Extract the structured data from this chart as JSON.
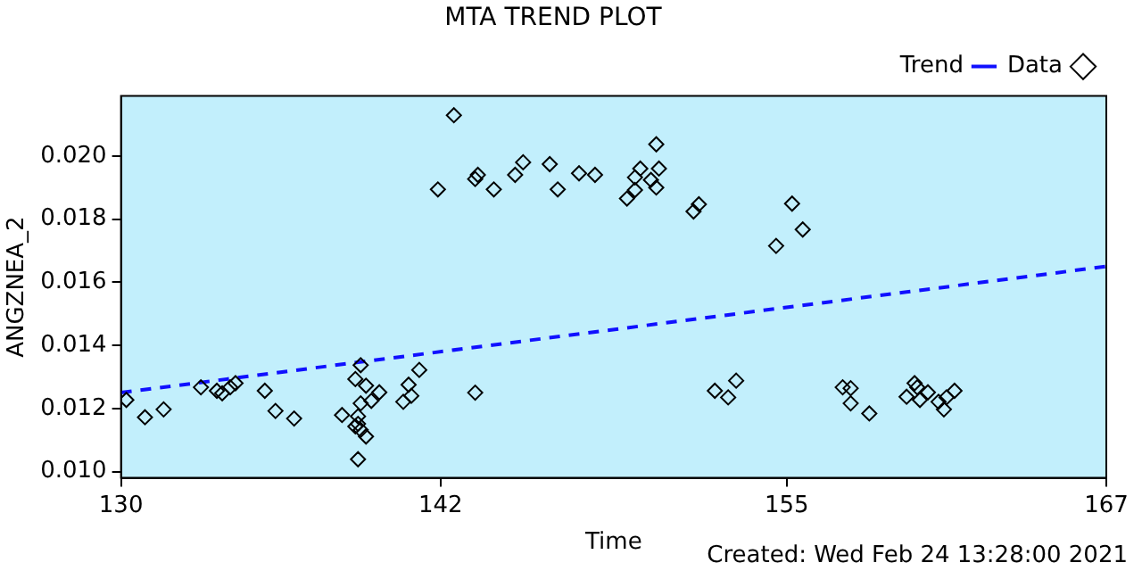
{
  "chart_data": {
    "type": "scatter",
    "title": "MTA TREND PLOT",
    "xlabel": "Time",
    "ylabel": "ANGZNEA_2",
    "annotations": [
      "Created: Wed Feb 24 13:28:00 2021"
    ],
    "xlim": [
      130,
      167
    ],
    "xticks": [
      130,
      142,
      155,
      167
    ],
    "ylim": [
      0.0098,
      0.0219
    ],
    "yticks": [
      {
        "value": 0.01,
        "label": "0.010"
      },
      {
        "value": 0.012,
        "label": "0.012"
      },
      {
        "value": 0.014,
        "label": "0.014"
      },
      {
        "value": 0.016,
        "label": "0.016"
      },
      {
        "value": 0.018,
        "label": "0.018"
      },
      {
        "value": 0.02,
        "label": "0.020"
      }
    ],
    "grid": false,
    "legend": "top right",
    "series": [
      {
        "name": "Data",
        "type": "scatter",
        "marker": "diamond",
        "color": "#000000",
        "x": [
          130.2,
          130.9,
          131.6,
          133.0,
          133.6,
          133.8,
          134.1,
          134.3,
          135.4,
          135.8,
          136.5,
          138.3,
          138.8,
          139.0,
          139.2,
          138.9,
          139.7,
          139.4,
          139.0,
          138.9,
          138.9,
          139.0,
          139.2,
          138.8,
          140.6,
          140.9,
          140.8,
          141.2,
          143.3,
          142.5,
          141.9,
          143.3,
          143.4,
          144.0,
          144.8,
          145.1,
          146.1,
          146.4,
          147.2,
          147.8,
          150.1,
          149.0,
          149.3,
          149.5,
          149.3,
          149.9,
          150.2,
          150.1,
          151.5,
          151.7,
          154.6,
          155.2,
          155.6,
          152.3,
          152.8,
          153.1,
          157.1,
          157.4,
          157.4,
          158.1,
          159.5,
          159.8,
          159.9,
          160.0,
          160.3,
          160.7,
          160.9,
          161.0,
          161.3
        ],
        "values": [
          0.01227,
          0.01172,
          0.01197,
          0.01267,
          0.01256,
          0.01248,
          0.01267,
          0.0128,
          0.01256,
          0.01192,
          0.01168,
          0.01179,
          0.01293,
          0.01337,
          0.01272,
          0.01039,
          0.01251,
          0.01224,
          0.01216,
          0.01175,
          0.01151,
          0.01132,
          0.01111,
          0.01143,
          0.01221,
          0.0124,
          0.01275,
          0.01322,
          0.0125,
          0.02129,
          0.01894,
          0.01927,
          0.0194,
          0.01894,
          0.0194,
          0.0198,
          0.01974,
          0.01894,
          0.01945,
          0.0194,
          0.02037,
          0.01865,
          0.01892,
          0.0196,
          0.01932,
          0.01924,
          0.0196,
          0.019,
          0.01824,
          0.01847,
          0.01715,
          0.01849,
          0.01767,
          0.01256,
          0.01235,
          0.01288,
          0.01267,
          0.01264,
          0.01216,
          0.01184,
          0.01237,
          0.0128,
          0.01267,
          0.01227,
          0.01251,
          0.01221,
          0.01197,
          0.01235,
          0.01256
        ]
      },
      {
        "name": "Trend",
        "type": "line",
        "line_style": "dashed",
        "color": "#1010ff",
        "x": [
          130,
          167
        ],
        "values": [
          0.0125,
          0.0165
        ]
      }
    ]
  }
}
